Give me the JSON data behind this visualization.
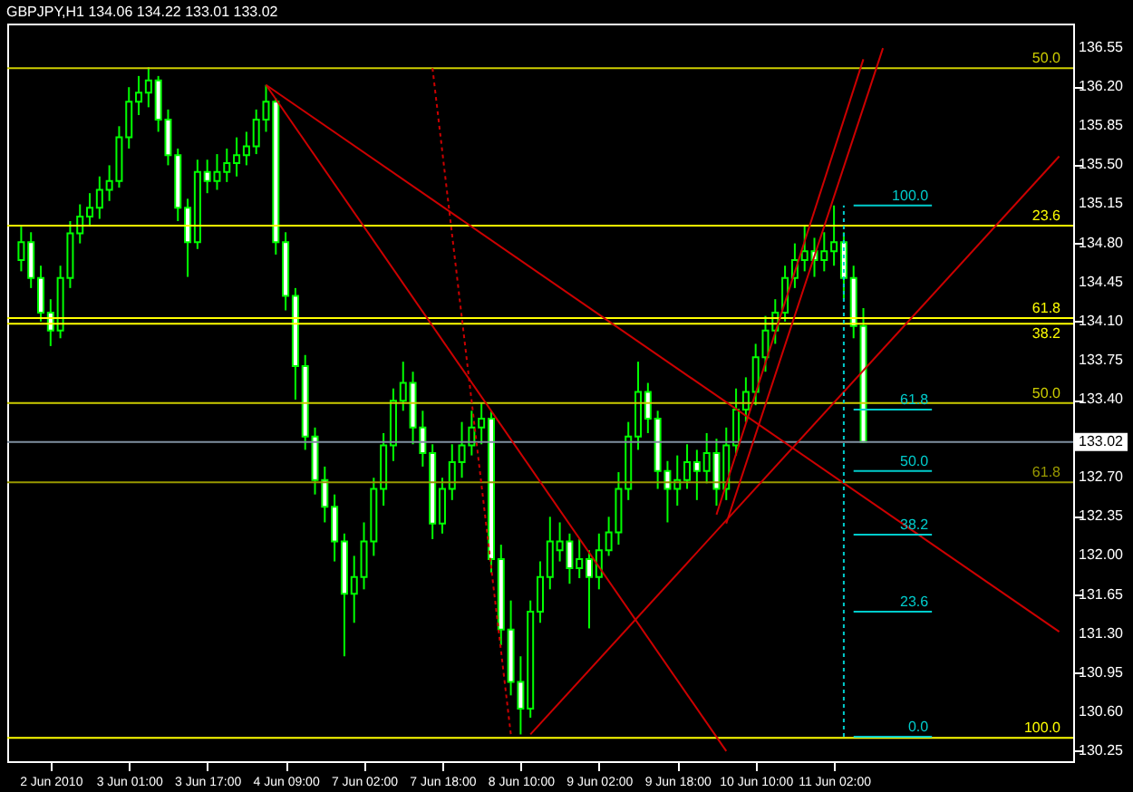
{
  "chart_data": {
    "type": "candlestick",
    "title": "GBPJPY,H1  134.06 134.22 133.01 133.02",
    "color": "#00ff00",
    "categories": [
      null,
      null,
      null,
      "2 Jun 2010",
      null,
      null,
      null,
      null,
      null,
      null,
      null,
      "3 Jun 01:00",
      null,
      null,
      null,
      null,
      null,
      null,
      null,
      "3 Jun 17:00",
      null,
      null,
      null,
      null,
      null,
      null,
      null,
      "4 Jun 09:00",
      null,
      null,
      null,
      null,
      null,
      null,
      null,
      "7 Jun 02:00",
      null,
      null,
      null,
      null,
      null,
      null,
      null,
      "7 Jun 18:00",
      null,
      null,
      null,
      null,
      null,
      null,
      null,
      "8 Jun 10:00",
      null,
      null,
      null,
      null,
      null,
      null,
      null,
      "9 Jun 02:00",
      null,
      null,
      null,
      null,
      null,
      null,
      null,
      "9 Jun 18:00",
      null,
      null,
      null,
      null,
      null,
      null,
      null,
      "10 Jun 10:00",
      null,
      null,
      null,
      null,
      null,
      null,
      null,
      "11 Jun 02:00",
      null,
      null,
      null,
      null,
      null,
      null,
      null,
      null,
      null,
      null,
      null,
      null,
      null,
      null,
      null,
      null,
      null,
      null,
      null,
      null,
      null,
      null,
      null
    ],
    "ohlc": [
      [
        134.65,
        134.95,
        134.55,
        134.81
      ],
      [
        134.81,
        134.9,
        134.4,
        134.49
      ],
      [
        134.49,
        134.6,
        134.1,
        134.18
      ],
      [
        134.18,
        134.3,
        133.88,
        134.02
      ],
      [
        134.02,
        134.6,
        133.95,
        134.49
      ],
      [
        134.49,
        135.0,
        134.4,
        134.89
      ],
      [
        134.89,
        135.15,
        134.8,
        135.04
      ],
      [
        135.04,
        135.25,
        134.95,
        135.12
      ],
      [
        135.12,
        135.4,
        135.02,
        135.28
      ],
      [
        135.28,
        135.5,
        135.18,
        135.36
      ],
      [
        135.36,
        135.85,
        135.3,
        135.75
      ],
      [
        135.75,
        136.2,
        135.65,
        136.07
      ],
      [
        136.07,
        136.3,
        135.95,
        136.15
      ],
      [
        136.15,
        136.38,
        136.02,
        136.26
      ],
      [
        136.26,
        136.3,
        135.8,
        135.91
      ],
      [
        135.91,
        136.0,
        135.5,
        135.59
      ],
      [
        135.59,
        135.65,
        135.0,
        135.12
      ],
      [
        135.12,
        135.2,
        134.5,
        134.81
      ],
      [
        134.81,
        135.55,
        134.75,
        135.44
      ],
      [
        135.44,
        135.55,
        135.25,
        135.36
      ],
      [
        135.36,
        135.6,
        135.28,
        135.44
      ],
      [
        135.44,
        135.65,
        135.35,
        135.52
      ],
      [
        135.52,
        135.75,
        135.4,
        135.59
      ],
      [
        135.59,
        135.8,
        135.5,
        135.67
      ],
      [
        135.67,
        136.0,
        135.6,
        135.91
      ],
      [
        135.91,
        136.22,
        135.8,
        136.07
      ],
      [
        136.07,
        136.1,
        134.7,
        134.81
      ],
      [
        134.81,
        134.9,
        134.2,
        134.33
      ],
      [
        134.33,
        134.4,
        133.4,
        133.7
      ],
      [
        133.7,
        133.8,
        132.95,
        133.07
      ],
      [
        133.07,
        133.15,
        132.55,
        132.68
      ],
      [
        132.68,
        132.8,
        132.3,
        132.44
      ],
      [
        132.44,
        132.55,
        131.95,
        132.13
      ],
      [
        132.13,
        132.2,
        131.1,
        131.66
      ],
      [
        131.66,
        132.0,
        131.4,
        131.81
      ],
      [
        131.81,
        132.3,
        131.7,
        132.13
      ],
      [
        132.13,
        132.7,
        132.0,
        132.6
      ],
      [
        132.6,
        133.1,
        132.45,
        132.99
      ],
      [
        132.99,
        133.5,
        132.85,
        133.39
      ],
      [
        133.39,
        133.74,
        133.3,
        133.55
      ],
      [
        133.55,
        133.65,
        133.0,
        133.15
      ],
      [
        133.15,
        133.3,
        132.8,
        132.92
      ],
      [
        132.92,
        133.0,
        132.15,
        132.29
      ],
      [
        132.29,
        132.7,
        132.2,
        132.6
      ],
      [
        132.6,
        133.0,
        132.5,
        132.84
      ],
      [
        132.84,
        133.2,
        132.7,
        132.99
      ],
      [
        132.99,
        133.3,
        132.9,
        133.15
      ],
      [
        133.15,
        133.37,
        133.0,
        133.23
      ],
      [
        133.23,
        133.3,
        131.85,
        131.97
      ],
      [
        131.97,
        132.1,
        131.2,
        131.34
      ],
      [
        131.34,
        131.6,
        130.75,
        130.87
      ],
      [
        130.87,
        131.1,
        130.4,
        130.63
      ],
      [
        130.63,
        131.6,
        130.55,
        131.5
      ],
      [
        131.5,
        131.95,
        131.4,
        131.81
      ],
      [
        131.81,
        132.35,
        131.7,
        132.13
      ],
      [
        132.05,
        132.3,
        131.95,
        132.13
      ],
      [
        132.13,
        132.2,
        131.75,
        131.89
      ],
      [
        131.89,
        132.15,
        131.8,
        131.97
      ],
      [
        131.97,
        132.05,
        131.35,
        131.81
      ],
      [
        131.81,
        132.2,
        131.7,
        132.05
      ],
      [
        132.05,
        132.35,
        132.0,
        132.21
      ],
      [
        132.21,
        132.75,
        132.1,
        132.6
      ],
      [
        132.6,
        133.2,
        132.5,
        133.07
      ],
      [
        133.07,
        133.74,
        132.95,
        133.47
      ],
      [
        133.47,
        133.55,
        133.1,
        133.23
      ],
      [
        133.23,
        133.3,
        132.6,
        132.76
      ],
      [
        132.76,
        132.85,
        132.3,
        132.6
      ],
      [
        132.6,
        132.9,
        132.45,
        132.68
      ],
      [
        132.68,
        133.0,
        132.6,
        132.84
      ],
      [
        132.84,
        132.95,
        132.5,
        132.76
      ],
      [
        132.76,
        133.1,
        132.65,
        132.92
      ],
      [
        132.92,
        133.05,
        132.45,
        132.6
      ],
      [
        132.6,
        133.15,
        132.5,
        132.99
      ],
      [
        132.99,
        133.5,
        132.9,
        133.31
      ],
      [
        133.31,
        133.6,
        133.2,
        133.47
      ],
      [
        133.47,
        133.9,
        133.35,
        133.78
      ],
      [
        133.78,
        134.15,
        133.65,
        134.02
      ],
      [
        134.02,
        134.3,
        133.9,
        134.18
      ],
      [
        134.18,
        134.6,
        134.1,
        134.49
      ],
      [
        134.49,
        134.8,
        134.4,
        134.65
      ],
      [
        134.65,
        134.96,
        134.55,
        134.73
      ],
      [
        134.73,
        134.85,
        134.5,
        134.65
      ],
      [
        134.65,
        134.9,
        134.55,
        134.73
      ],
      [
        134.73,
        135.14,
        134.6,
        134.81
      ],
      [
        134.81,
        134.9,
        134.3,
        134.49
      ],
      [
        134.49,
        134.6,
        133.95,
        134.06
      ],
      [
        134.06,
        134.22,
        133.01,
        133.02
      ],
      null,
      null,
      null,
      null,
      null,
      null,
      null,
      null,
      null,
      null,
      null,
      null,
      null,
      null,
      null,
      null,
      null,
      null,
      null,
      null
    ],
    "ylim": [
      130.16,
      136.77
    ],
    "yticks": [
      136.55,
      {
        "value": 136.2,
        "label": "136.20"
      },
      135.85,
      {
        "value": 135.5,
        "label": "135.50"
      },
      135.15,
      {
        "value": 134.8,
        "label": "134.80"
      },
      134.45,
      {
        "value": 134.1,
        "label": "134.10"
      },
      133.75,
      {
        "value": 133.4,
        "label": "133.40"
      },
      {
        "value": 132.7,
        "label": "132.70"
      },
      132.35,
      {
        "value": 132,
        "label": "132.00"
      },
      131.65,
      {
        "value": 131.3,
        "label": "131.30"
      },
      130.95,
      {
        "value": 130.6,
        "label": "130.60"
      },
      130.25
    ],
    "grid": false,
    "series": [
      {
        "type": "line",
        "color": "#cc0000",
        "values": [
          null,
          null,
          null,
          null,
          null,
          null,
          null,
          null,
          null,
          null,
          null,
          null,
          null,
          null,
          null,
          null,
          null,
          null,
          null,
          null,
          null,
          null,
          null,
          null,
          null,
          136.22,
          null,
          null,
          null,
          null,
          null,
          null,
          null,
          null,
          null,
          null,
          null,
          null,
          null,
          null,
          null,
          null,
          null,
          null,
          null,
          null,
          null,
          null,
          null,
          null,
          null,
          null,
          null,
          null,
          null,
          null,
          null,
          null,
          null,
          null,
          null,
          null,
          null,
          null,
          null,
          null,
          null,
          null,
          null,
          null,
          null,
          null,
          null,
          null,
          null,
          null,
          null,
          null,
          null,
          null,
          null,
          null,
          null,
          null,
          null,
          null,
          null,
          null,
          null,
          null,
          null,
          null,
          null,
          null,
          null,
          null,
          null,
          null,
          null,
          null,
          null,
          null,
          null,
          null,
          null,
          null,
          131.32
        ]
      },
      {
        "type": "line",
        "color": "#cc0000",
        "values": [
          null,
          null,
          null,
          null,
          null,
          null,
          null,
          null,
          null,
          null,
          null,
          null,
          null,
          null,
          null,
          null,
          null,
          null,
          null,
          null,
          null,
          null,
          null,
          null,
          null,
          136.22,
          null,
          null,
          null,
          null,
          null,
          null,
          null,
          null,
          null,
          null,
          null,
          null,
          null,
          null,
          null,
          null,
          null,
          null,
          null,
          null,
          null,
          null,
          null,
          null,
          null,
          null,
          null,
          null,
          null,
          null,
          null,
          null,
          null,
          null,
          null,
          null,
          null,
          null,
          null,
          null,
          null,
          null,
          null,
          null,
          null,
          null,
          130.25,
          null,
          null,
          null,
          null,
          null,
          null,
          null,
          null,
          null,
          null,
          null,
          null,
          null,
          null,
          null,
          null,
          null,
          null,
          null,
          null,
          null,
          null,
          null,
          null,
          null,
          null,
          null,
          null,
          null,
          null,
          null,
          null,
          null,
          null
        ]
      },
      {
        "type": "line",
        "color": "#cc0000",
        "line_style": "dotted",
        "values": [
          null,
          null,
          null,
          null,
          null,
          null,
          null,
          null,
          null,
          null,
          null,
          null,
          null,
          null,
          null,
          null,
          null,
          null,
          null,
          null,
          null,
          null,
          null,
          null,
          null,
          null,
          null,
          null,
          null,
          null,
          null,
          null,
          null,
          null,
          null,
          null,
          null,
          null,
          null,
          null,
          null,
          null,
          136.37,
          null,
          null,
          null,
          null,
          null,
          null,
          null,
          130.4,
          null,
          null,
          null,
          null,
          null,
          null,
          null,
          null,
          null,
          null,
          null,
          null,
          null,
          null,
          null,
          null,
          null,
          null,
          null,
          null,
          null,
          null,
          null,
          null,
          null,
          null,
          null,
          null,
          null,
          null,
          null,
          null,
          null,
          null,
          null,
          null,
          null,
          null,
          null,
          null,
          null,
          null,
          null,
          null,
          null,
          null,
          null,
          null,
          null,
          null,
          null,
          null,
          null,
          null,
          null,
          null
        ]
      },
      {
        "type": "line",
        "color": "#cc0000",
        "values": [
          null,
          null,
          null,
          null,
          null,
          null,
          null,
          null,
          null,
          null,
          null,
          null,
          null,
          null,
          null,
          null,
          null,
          null,
          null,
          null,
          null,
          null,
          null,
          null,
          null,
          null,
          null,
          null,
          null,
          null,
          null,
          null,
          null,
          null,
          null,
          null,
          null,
          null,
          null,
          null,
          null,
          null,
          null,
          null,
          null,
          null,
          null,
          null,
          null,
          null,
          null,
          null,
          130.4,
          null,
          null,
          null,
          null,
          null,
          null,
          null,
          null,
          null,
          null,
          null,
          null,
          null,
          null,
          null,
          null,
          null,
          null,
          null,
          null,
          null,
          null,
          null,
          null,
          null,
          null,
          null,
          null,
          null,
          null,
          null,
          null,
          null,
          null,
          null,
          null,
          null,
          null,
          null,
          null,
          null,
          null,
          null,
          null,
          null,
          null,
          null,
          null,
          null,
          null,
          null,
          null,
          null,
          135.58
        ]
      },
      {
        "type": "line",
        "color": "#cc0000",
        "values": [
          null,
          null,
          null,
          null,
          null,
          null,
          null,
          null,
          null,
          null,
          null,
          null,
          null,
          null,
          null,
          null,
          null,
          null,
          null,
          null,
          null,
          null,
          null,
          null,
          null,
          null,
          null,
          null,
          null,
          null,
          null,
          null,
          null,
          null,
          null,
          null,
          null,
          null,
          null,
          null,
          null,
          null,
          null,
          null,
          null,
          null,
          null,
          null,
          null,
          null,
          null,
          null,
          null,
          null,
          null,
          null,
          null,
          null,
          null,
          null,
          null,
          null,
          null,
          null,
          null,
          null,
          null,
          null,
          null,
          null,
          null,
          132.37,
          null,
          null,
          null,
          null,
          null,
          null,
          null,
          null,
          null,
          null,
          null,
          null,
          null,
          null,
          136.45,
          null,
          null,
          null,
          null,
          null,
          null,
          null,
          null,
          null,
          null,
          null,
          null,
          null,
          null,
          null,
          null,
          null,
          null,
          null,
          null
        ]
      },
      {
        "type": "line",
        "color": "#cc0000",
        "values": [
          null,
          null,
          null,
          null,
          null,
          null,
          null,
          null,
          null,
          null,
          null,
          null,
          null,
          null,
          null,
          null,
          null,
          null,
          null,
          null,
          null,
          null,
          null,
          null,
          null,
          null,
          null,
          null,
          null,
          null,
          null,
          null,
          null,
          null,
          null,
          null,
          null,
          null,
          null,
          null,
          null,
          null,
          null,
          null,
          null,
          null,
          null,
          null,
          null,
          null,
          null,
          null,
          null,
          null,
          null,
          null,
          null,
          null,
          null,
          null,
          null,
          null,
          null,
          null,
          null,
          null,
          null,
          null,
          null,
          null,
          null,
          null,
          132.29,
          null,
          null,
          null,
          null,
          null,
          null,
          null,
          null,
          null,
          null,
          null,
          null,
          null,
          null,
          null,
          136.55,
          null,
          null,
          null,
          null,
          null,
          null,
          null,
          null,
          null,
          null,
          null,
          null,
          null,
          null,
          null,
          null,
          null,
          null
        ]
      },
      {
        "type": "line",
        "color": "#00cccc",
        "values": [
          null,
          null,
          null,
          null,
          null,
          null,
          null,
          null,
          null,
          null,
          null,
          null,
          null,
          null,
          null,
          null,
          null,
          null,
          null,
          null,
          null,
          null,
          null,
          null,
          null,
          null,
          null,
          null,
          null,
          null,
          null,
          null,
          null,
          null,
          null,
          null,
          null,
          null,
          null,
          null,
          null,
          null,
          null,
          null,
          null,
          null,
          null,
          null,
          null,
          null,
          null,
          null,
          null,
          null,
          null,
          null,
          null,
          null,
          null,
          null,
          null,
          null,
          null,
          null,
          null,
          null,
          null,
          null,
          null,
          null,
          null,
          null,
          null,
          null,
          null,
          null,
          null,
          null,
          null,
          null,
          null,
          null,
          null,
          null,
          null,
          135.14,
          135.14,
          135.14,
          135.14,
          135.14,
          135.14,
          135.14,
          135.14,
          135.14,
          null,
          null,
          null,
          null,
          null,
          null,
          null,
          null,
          null,
          null,
          null,
          null,
          null
        ]
      },
      {
        "type": "line",
        "color": "#00cccc",
        "values": [
          null,
          null,
          null,
          null,
          null,
          null,
          null,
          null,
          null,
          null,
          null,
          null,
          null,
          null,
          null,
          null,
          null,
          null,
          null,
          null,
          null,
          null,
          null,
          null,
          null,
          null,
          null,
          null,
          null,
          null,
          null,
          null,
          null,
          null,
          null,
          null,
          null,
          null,
          null,
          null,
          null,
          null,
          null,
          null,
          null,
          null,
          null,
          null,
          null,
          null,
          null,
          null,
          null,
          null,
          null,
          null,
          null,
          null,
          null,
          null,
          null,
          null,
          null,
          null,
          null,
          null,
          null,
          null,
          null,
          null,
          null,
          null,
          null,
          null,
          null,
          null,
          null,
          null,
          null,
          null,
          null,
          null,
          null,
          null,
          null,
          133.31,
          133.31,
          133.31,
          133.31,
          133.31,
          133.31,
          133.31,
          133.31,
          133.31,
          null,
          null,
          null,
          null,
          null,
          null,
          null,
          null,
          null,
          null,
          null,
          null,
          null
        ]
      },
      {
        "type": "line",
        "color": "#00cccc",
        "values": [
          null,
          null,
          null,
          null,
          null,
          null,
          null,
          null,
          null,
          null,
          null,
          null,
          null,
          null,
          null,
          null,
          null,
          null,
          null,
          null,
          null,
          null,
          null,
          null,
          null,
          null,
          null,
          null,
          null,
          null,
          null,
          null,
          null,
          null,
          null,
          null,
          null,
          null,
          null,
          null,
          null,
          null,
          null,
          null,
          null,
          null,
          null,
          null,
          null,
          null,
          null,
          null,
          null,
          null,
          null,
          null,
          null,
          null,
          null,
          null,
          null,
          null,
          null,
          null,
          null,
          null,
          null,
          null,
          null,
          null,
          null,
          null,
          null,
          null,
          null,
          null,
          null,
          null,
          null,
          null,
          null,
          null,
          null,
          null,
          null,
          132.76,
          132.76,
          132.76,
          132.76,
          132.76,
          132.76,
          132.76,
          132.76,
          132.76,
          null,
          null,
          null,
          null,
          null,
          null,
          null,
          null,
          null,
          null,
          null,
          null,
          null
        ]
      },
      {
        "type": "line",
        "color": "#00cccc",
        "values": [
          null,
          null,
          null,
          null,
          null,
          null,
          null,
          null,
          null,
          null,
          null,
          null,
          null,
          null,
          null,
          null,
          null,
          null,
          null,
          null,
          null,
          null,
          null,
          null,
          null,
          null,
          null,
          null,
          null,
          null,
          null,
          null,
          null,
          null,
          null,
          null,
          null,
          null,
          null,
          null,
          null,
          null,
          null,
          null,
          null,
          null,
          null,
          null,
          null,
          null,
          null,
          null,
          null,
          null,
          null,
          null,
          null,
          null,
          null,
          null,
          null,
          null,
          null,
          null,
          null,
          null,
          null,
          null,
          null,
          null,
          null,
          null,
          null,
          null,
          null,
          null,
          null,
          null,
          null,
          null,
          null,
          null,
          null,
          null,
          null,
          132.19,
          132.19,
          132.19,
          132.19,
          132.19,
          132.19,
          132.19,
          132.19,
          132.19,
          null,
          null,
          null,
          null,
          null,
          null,
          null,
          null,
          null,
          null,
          null,
          null,
          null
        ]
      },
      {
        "type": "line",
        "color": "#00cccc",
        "values": [
          null,
          null,
          null,
          null,
          null,
          null,
          null,
          null,
          null,
          null,
          null,
          null,
          null,
          null,
          null,
          null,
          null,
          null,
          null,
          null,
          null,
          null,
          null,
          null,
          null,
          null,
          null,
          null,
          null,
          null,
          null,
          null,
          null,
          null,
          null,
          null,
          null,
          null,
          null,
          null,
          null,
          null,
          null,
          null,
          null,
          null,
          null,
          null,
          null,
          null,
          null,
          null,
          null,
          null,
          null,
          null,
          null,
          null,
          null,
          null,
          null,
          null,
          null,
          null,
          null,
          null,
          null,
          null,
          null,
          null,
          null,
          null,
          null,
          null,
          null,
          null,
          null,
          null,
          null,
          null,
          null,
          null,
          null,
          null,
          null,
          131.5,
          131.5,
          131.5,
          131.5,
          131.5,
          131.5,
          131.5,
          131.5,
          131.5,
          null,
          null,
          null,
          null,
          null,
          null,
          null,
          null,
          null,
          null,
          null,
          null,
          null
        ]
      },
      {
        "type": "line",
        "color": "#00cccc",
        "values": [
          null,
          null,
          null,
          null,
          null,
          null,
          null,
          null,
          null,
          null,
          null,
          null,
          null,
          null,
          null,
          null,
          null,
          null,
          null,
          null,
          null,
          null,
          null,
          null,
          null,
          null,
          null,
          null,
          null,
          null,
          null,
          null,
          null,
          null,
          null,
          null,
          null,
          null,
          null,
          null,
          null,
          null,
          null,
          null,
          null,
          null,
          null,
          null,
          null,
          null,
          null,
          null,
          null,
          null,
          null,
          null,
          null,
          null,
          null,
          null,
          null,
          null,
          null,
          null,
          null,
          null,
          null,
          null,
          null,
          null,
          null,
          null,
          null,
          null,
          null,
          null,
          null,
          null,
          null,
          null,
          null,
          null,
          null,
          null,
          null,
          130.38,
          130.38,
          130.38,
          130.38,
          130.38,
          130.38,
          130.38,
          130.38,
          130.38,
          null,
          null,
          null,
          null,
          null,
          null,
          null,
          null,
          null,
          null,
          null,
          null,
          null
        ]
      }
    ],
    "ref_lines": [
      {
        "axis": "y",
        "value": 136.37,
        "color": "#cccc00"
      },
      {
        "axis": "y",
        "value": 134.96,
        "color": "#ffff00"
      },
      {
        "axis": "y",
        "value": 134.13,
        "color": "#ffff00"
      },
      {
        "axis": "y",
        "value": 134.08,
        "color": "#ffff00"
      },
      {
        "axis": "y",
        "value": 133.37,
        "color": "#cccc00"
      },
      {
        "axis": "y",
        "value": 133.02,
        "label": "133.02",
        "color": "#7f8fa0"
      },
      {
        "axis": "y",
        "value": 132.66,
        "color": "#999900"
      },
      {
        "axis": "y",
        "value": 130.37,
        "color": "#ffff00"
      }
    ],
    "annotations": [
      {
        "text": "50.0",
        "y": 136.37
      },
      {
        "text": "23.6",
        "y": 134.96
      },
      {
        "text": "61.8",
        "y": 134.13
      },
      {
        "text": "38.2",
        "y": 134.08
      },
      {
        "text": "50.0",
        "y": 133.37
      },
      {
        "text": "61.8",
        "y": 132.66
      },
      {
        "text": "100.0",
        "y": 130.37
      },
      {
        "text": "100.0",
        "y": 135.14
      },
      {
        "text": "61.8",
        "y": 133.31
      },
      {
        "text": "50.0",
        "y": 132.76
      },
      {
        "text": "38.2",
        "y": 132.19
      },
      {
        "text": "23.6",
        "y": 131.5
      },
      {
        "text": "0.0",
        "y": 130.38
      }
    ]
  }
}
